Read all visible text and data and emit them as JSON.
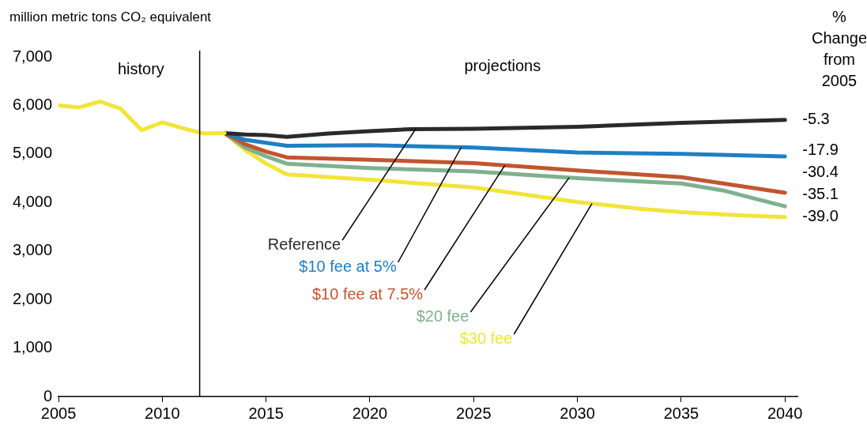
{
  "chart_data": {
    "type": "line",
    "ylabel": "million metric tons CO₂ equivalent",
    "xlim": [
      2005,
      2040.6
    ],
    "xticks": [
      2005,
      2010,
      2015,
      2020,
      2025,
      2030,
      2035,
      2040
    ],
    "ylim": [
      0,
      7000
    ],
    "yticks": [
      0,
      {
        "value": 1000,
        "label": "1,000"
      },
      {
        "value": 2000,
        "label": "2,000"
      },
      {
        "value": 3000,
        "label": "3,000"
      },
      {
        "value": 4000,
        "label": "4,000"
      },
      {
        "value": 5000,
        "label": "5,000"
      },
      {
        "value": 6000,
        "label": "6,000"
      },
      {
        "value": 7000,
        "label": "7,000"
      }
    ],
    "grid": false,
    "legend": false,
    "marker": "none",
    "line_style": "solid",
    "ref_lines": [
      {
        "axis": "x",
        "value": 2011.8,
        "color": "#000000"
      }
    ],
    "annotations": [
      "history",
      "projections",
      "% Change from 2005",
      "-5.3",
      "-17.9",
      "-30.4",
      "-35.1",
      "-39.0"
    ],
    "series": [
      {
        "color": "#f2e43a",
        "x": [
          2005,
          2006,
          2007,
          2008,
          2009,
          2010,
          2011,
          2012,
          2013
        ],
        "values": [
          6000,
          5960,
          6080,
          5930,
          5490,
          5650,
          5530,
          5420,
          5430
        ]
      },
      {
        "name": "Reference",
        "color": "#2a2a2a",
        "x": [
          2013,
          2014,
          2015,
          2016,
          2018,
          2020,
          2022,
          2025,
          2030,
          2035,
          2040
        ],
        "values": [
          5430,
          5400,
          5390,
          5350,
          5420,
          5470,
          5510,
          5520,
          5560,
          5640,
          5700
        ]
      },
      {
        "name": "$10 fee at 5%",
        "color": "#1f7fc4",
        "x": [
          2013,
          2014,
          2015,
          2016,
          2020,
          2025,
          2030,
          2035,
          2040
        ],
        "values": [
          5430,
          5290,
          5230,
          5170,
          5180,
          5130,
          5030,
          5000,
          4950
        ]
      },
      {
        "name": "$10 fee at 7.5%",
        "color": "#c0562f",
        "x": [
          2013,
          2014,
          2015,
          2016,
          2020,
          2025,
          2030,
          2035,
          2040
        ],
        "values": [
          5430,
          5200,
          5050,
          4930,
          4880,
          4810,
          4660,
          4520,
          4200
        ]
      },
      {
        "name": "$20 fee",
        "color": "#7fb08f",
        "x": [
          2013,
          2014,
          2015,
          2016,
          2020,
          2025,
          2030,
          2035,
          2037,
          2040
        ],
        "values": [
          5430,
          5130,
          4950,
          4800,
          4710,
          4640,
          4500,
          4390,
          4250,
          3920
        ]
      },
      {
        "name": "$30 fee",
        "color": "#f2e43a",
        "x": [
          2013,
          2014,
          2015,
          2016,
          2020,
          2025,
          2028,
          2030,
          2033,
          2035,
          2038,
          2040
        ],
        "values": [
          5430,
          5080,
          4800,
          4580,
          4470,
          4310,
          4130,
          4010,
          3870,
          3800,
          3730,
          3700
        ]
      }
    ]
  }
}
